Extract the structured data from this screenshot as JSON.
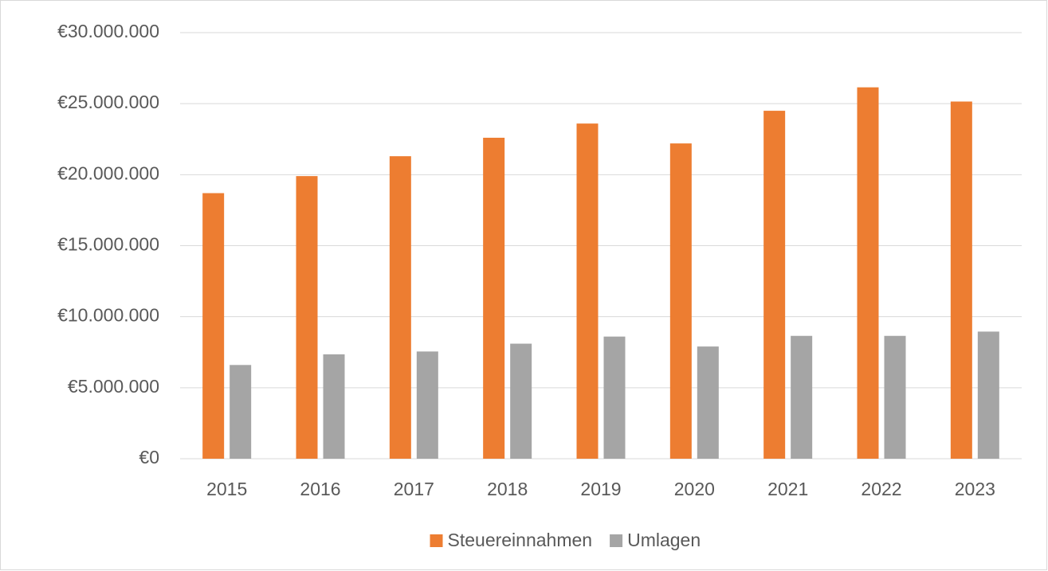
{
  "chart_data": {
    "type": "bar",
    "categories": [
      "2015",
      "2016",
      "2017",
      "2018",
      "2019",
      "2020",
      "2021",
      "2022",
      "2023"
    ],
    "series": [
      {
        "name": "Steuereinnahmen",
        "color": "#ed7d31",
        "values": [
          18700000,
          19900000,
          21300000,
          22600000,
          23600000,
          22200000,
          24500000,
          26150000,
          25150000
        ]
      },
      {
        "name": "Umlagen",
        "color": "#a5a5a5",
        "values": [
          6600000,
          7350000,
          7550000,
          8100000,
          8600000,
          7900000,
          8650000,
          8650000,
          8950000
        ]
      }
    ],
    "ylim": [
      0,
      30000000
    ],
    "yticks": [
      {
        "value": 0,
        "label": "€0"
      },
      {
        "value": 5000000,
        "label": "€5.000.000"
      },
      {
        "value": 10000000,
        "label": "€10.000.000"
      },
      {
        "value": 15000000,
        "label": "€15.000.000"
      },
      {
        "value": 20000000,
        "label": "€20.000.000"
      },
      {
        "value": 25000000,
        "label": "€25.000.000"
      },
      {
        "value": 30000000,
        "label": "€30.000.000"
      }
    ],
    "grid": true,
    "legend": "bottom"
  }
}
